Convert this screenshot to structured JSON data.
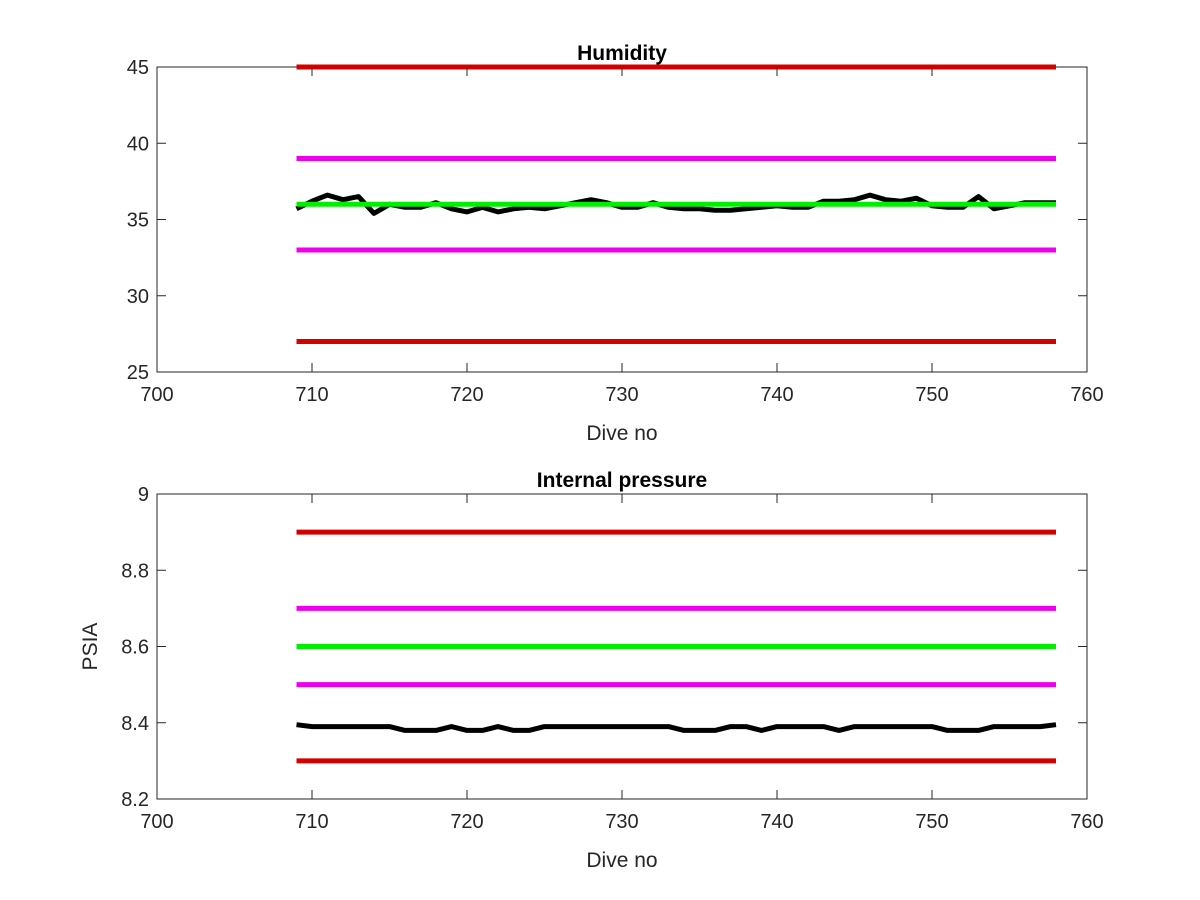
{
  "chart_data": [
    {
      "type": "line",
      "title": "Humidity",
      "xlabel": "Dive no",
      "ylabel": "",
      "xlim": [
        700,
        760
      ],
      "ylim": [
        25,
        45
      ],
      "xticks": [
        700,
        710,
        720,
        730,
        740,
        750,
        760
      ],
      "yticks": [
        25,
        30,
        35,
        40,
        45
      ],
      "grid": false,
      "series": [
        {
          "color": "#d40000",
          "x": [
            709,
            758
          ],
          "y": [
            45,
            45
          ]
        },
        {
          "color": "#ee00ee",
          "x": [
            709,
            758
          ],
          "y": [
            39,
            39
          ]
        },
        {
          "color": "#ee00ee",
          "x": [
            709,
            758
          ],
          "y": [
            33,
            33
          ]
        },
        {
          "color": "#d40000",
          "x": [
            709,
            758
          ],
          "y": [
            27,
            27
          ]
        },
        {
          "color": "#000000",
          "x": [
            709,
            710,
            711,
            712,
            713,
            714,
            715,
            716,
            717,
            718,
            719,
            720,
            721,
            722,
            723,
            724,
            725,
            726,
            727,
            728,
            729,
            730,
            731,
            732,
            733,
            734,
            735,
            736,
            737,
            738,
            739,
            740,
            741,
            742,
            743,
            744,
            745,
            746,
            747,
            748,
            749,
            750,
            751,
            752,
            753,
            754,
            755,
            756,
            757,
            758
          ],
          "y": [
            35.7,
            36.2,
            36.6,
            36.3,
            36.5,
            35.4,
            36.0,
            35.8,
            35.8,
            36.1,
            35.7,
            35.5,
            35.8,
            35.5,
            35.7,
            35.8,
            35.7,
            35.9,
            36.1,
            36.3,
            36.1,
            35.8,
            35.8,
            36.1,
            35.8,
            35.7,
            35.7,
            35.6,
            35.6,
            35.7,
            35.8,
            35.9,
            35.8,
            35.8,
            36.2,
            36.2,
            36.3,
            36.6,
            36.3,
            36.2,
            36.4,
            35.9,
            35.8,
            35.8,
            36.5,
            35.7,
            35.9,
            36.1,
            36.1,
            36.1
          ]
        },
        {
          "color": "#00ee00",
          "x": [
            709,
            758
          ],
          "y": [
            36,
            36
          ]
        }
      ]
    },
    {
      "type": "line",
      "title": "Internal pressure",
      "xlabel": "Dive no",
      "ylabel": "PSIA",
      "xlim": [
        700,
        760
      ],
      "ylim": [
        8.2,
        9.0
      ],
      "xticks": [
        700,
        710,
        720,
        730,
        740,
        750,
        760
      ],
      "yticks": [
        8.2,
        8.4,
        8.6,
        8.8,
        9.0
      ],
      "ytick_labels": [
        "8.2",
        "8.4",
        "8.6",
        "8.8",
        "9"
      ],
      "grid": false,
      "series": [
        {
          "color": "#d40000",
          "x": [
            709,
            758
          ],
          "y": [
            8.9,
            8.9
          ]
        },
        {
          "color": "#ee00ee",
          "x": [
            709,
            758
          ],
          "y": [
            8.7,
            8.7
          ]
        },
        {
          "color": "#00ee00",
          "x": [
            709,
            758
          ],
          "y": [
            8.6,
            8.6
          ]
        },
        {
          "color": "#ee00ee",
          "x": [
            709,
            758
          ],
          "y": [
            8.5,
            8.5
          ]
        },
        {
          "color": "#000000",
          "x": [
            709,
            710,
            711,
            712,
            713,
            714,
            715,
            716,
            717,
            718,
            719,
            720,
            721,
            722,
            723,
            724,
            725,
            726,
            727,
            728,
            729,
            730,
            731,
            732,
            733,
            734,
            735,
            736,
            737,
            738,
            739,
            740,
            741,
            742,
            743,
            744,
            745,
            746,
            747,
            748,
            749,
            750,
            751,
            752,
            753,
            754,
            755,
            756,
            757,
            758
          ],
          "y": [
            8.395,
            8.39,
            8.39,
            8.39,
            8.39,
            8.39,
            8.39,
            8.38,
            8.38,
            8.38,
            8.39,
            8.38,
            8.38,
            8.39,
            8.38,
            8.38,
            8.39,
            8.39,
            8.39,
            8.39,
            8.39,
            8.39,
            8.39,
            8.39,
            8.39,
            8.38,
            8.38,
            8.38,
            8.39,
            8.39,
            8.38,
            8.39,
            8.39,
            8.39,
            8.39,
            8.38,
            8.39,
            8.39,
            8.39,
            8.39,
            8.39,
            8.39,
            8.38,
            8.38,
            8.38,
            8.39,
            8.39,
            8.39,
            8.39,
            8.395
          ]
        },
        {
          "color": "#d40000",
          "x": [
            709,
            758
          ],
          "y": [
            8.3,
            8.3
          ]
        }
      ]
    }
  ]
}
